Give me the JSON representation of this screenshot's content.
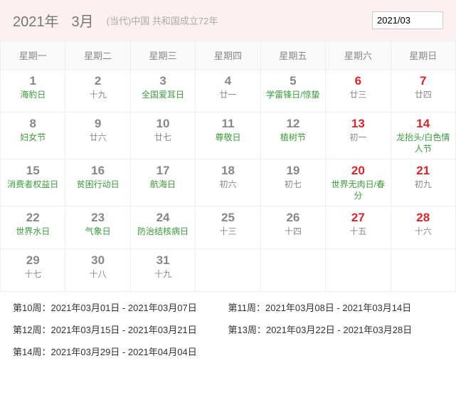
{
  "header": {
    "year": "2021年",
    "month": "3月",
    "subtitle": "(当代)中国 共和国成立72年",
    "input_value": "2021/03"
  },
  "weekdays": [
    "星期一",
    "星期二",
    "星期三",
    "星期四",
    "星期五",
    "星期六",
    "星期日"
  ],
  "days": [
    [
      {
        "n": "1",
        "nred": false,
        "l": "海豹日",
        "lg": true
      },
      {
        "n": "2",
        "nred": false,
        "l": "十九",
        "lg": false
      },
      {
        "n": "3",
        "nred": false,
        "l": "全国爱耳日",
        "lg": true
      },
      {
        "n": "4",
        "nred": false,
        "l": "廿一",
        "lg": false
      },
      {
        "n": "5",
        "nred": false,
        "l": "学雷锋日/惊蛰",
        "lg": true
      },
      {
        "n": "6",
        "nred": true,
        "l": "廿三",
        "lg": false
      },
      {
        "n": "7",
        "nred": true,
        "l": "廿四",
        "lg": false
      }
    ],
    [
      {
        "n": "8",
        "nred": false,
        "l": "妇女节",
        "lg": true
      },
      {
        "n": "9",
        "nred": false,
        "l": "廿六",
        "lg": false
      },
      {
        "n": "10",
        "nred": false,
        "l": "廿七",
        "lg": false
      },
      {
        "n": "11",
        "nred": false,
        "l": "尊敬日",
        "lg": true
      },
      {
        "n": "12",
        "nred": false,
        "l": "植树节",
        "lg": true
      },
      {
        "n": "13",
        "nred": true,
        "l": "初一",
        "lg": false
      },
      {
        "n": "14",
        "nred": true,
        "l": "龙抬头/白色情人节",
        "lg": true
      }
    ],
    [
      {
        "n": "15",
        "nred": false,
        "l": "消费者权益日",
        "lg": true
      },
      {
        "n": "16",
        "nred": false,
        "l": "贫困行动日",
        "lg": true
      },
      {
        "n": "17",
        "nred": false,
        "l": "航海日",
        "lg": true
      },
      {
        "n": "18",
        "nred": false,
        "l": "初六",
        "lg": false
      },
      {
        "n": "19",
        "nred": false,
        "l": "初七",
        "lg": false
      },
      {
        "n": "20",
        "nred": true,
        "l": "世界无肉日/春分",
        "lg": true
      },
      {
        "n": "21",
        "nred": true,
        "l": "初九",
        "lg": false
      }
    ],
    [
      {
        "n": "22",
        "nred": false,
        "l": "世界水日",
        "lg": true
      },
      {
        "n": "23",
        "nred": false,
        "l": "气象日",
        "lg": true
      },
      {
        "n": "24",
        "nred": false,
        "l": "防治结核病日",
        "lg": true
      },
      {
        "n": "25",
        "nred": false,
        "l": "十三",
        "lg": false
      },
      {
        "n": "26",
        "nred": false,
        "l": "十四",
        "lg": false
      },
      {
        "n": "27",
        "nred": true,
        "l": "十五",
        "lg": false
      },
      {
        "n": "28",
        "nred": true,
        "l": "十六",
        "lg": false
      }
    ],
    [
      {
        "n": "29",
        "nred": false,
        "l": "十七",
        "lg": false
      },
      {
        "n": "30",
        "nred": false,
        "l": "十八",
        "lg": false
      },
      {
        "n": "31",
        "nred": false,
        "l": "十九",
        "lg": false
      },
      {
        "n": "",
        "nred": false,
        "l": "",
        "lg": false
      },
      {
        "n": "",
        "nred": false,
        "l": "",
        "lg": false
      },
      {
        "n": "",
        "nred": false,
        "l": "",
        "lg": false
      },
      {
        "n": "",
        "nred": false,
        "l": "",
        "lg": false
      }
    ]
  ],
  "weeks": [
    [
      {
        "label": "第10周：",
        "range": "2021年03月01日 - 2021年03月07日"
      },
      {
        "label": "第11周：",
        "range": "2021年03月08日 - 2021年03月14日"
      }
    ],
    [
      {
        "label": "第12周：",
        "range": "2021年03月15日 - 2021年03月21日"
      },
      {
        "label": "第13周：",
        "range": "2021年03月22日 - 2021年03月28日"
      }
    ],
    [
      {
        "label": "第14周：",
        "range": "2021年03月29日 - 2021年04月04日"
      }
    ]
  ]
}
